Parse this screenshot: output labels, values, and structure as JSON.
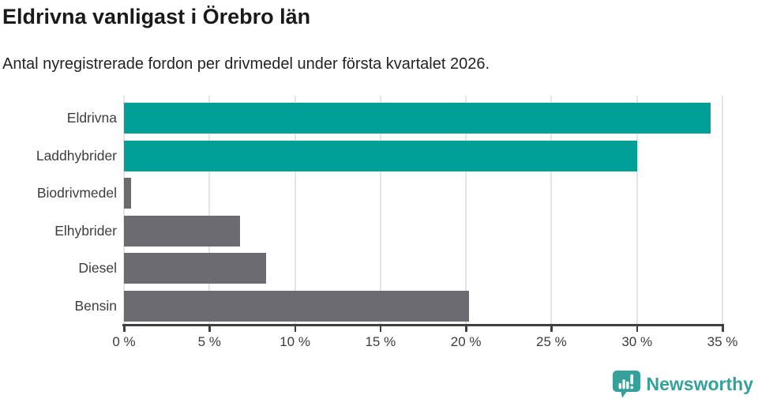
{
  "header": {
    "title": "Eldrivna vanligast i Örebro län",
    "subtitle": "Antal nyregistrerade fordon per drivmedel under första kvartalet 2026."
  },
  "chart_data": {
    "type": "bar",
    "orientation": "horizontal",
    "title": "Eldrivna vanligast i Örebro län",
    "subtitle": "Antal nyregistrerade fordon per drivmedel under första kvartalet 2026.",
    "categories": [
      "Eldrivna",
      "Laddhybrider",
      "Biodrivmedel",
      "Elhybrider",
      "Diesel",
      "Bensin"
    ],
    "values": [
      34.3,
      30.0,
      0.4,
      6.8,
      8.3,
      20.2
    ],
    "unit": "%",
    "xlim": [
      0,
      35
    ],
    "x_tick_values": [
      0,
      5,
      10,
      15,
      20,
      25,
      30,
      35
    ],
    "x_tick_labels": [
      "0 %",
      "5 %",
      "10 %",
      "15 %",
      "20 %",
      "25 %",
      "30 %",
      "35 %"
    ],
    "grid": true,
    "legend": "none",
    "bar_colors": [
      "#00a096",
      "#00a096",
      "#6d6b72",
      "#6d6b72",
      "#6d6b72",
      "#6d6b72"
    ],
    "highlight_color": "#00a096",
    "default_color": "#6d6b72"
  },
  "footer": {
    "brand": "Newsworthy",
    "brand_color": "#35a19a"
  }
}
